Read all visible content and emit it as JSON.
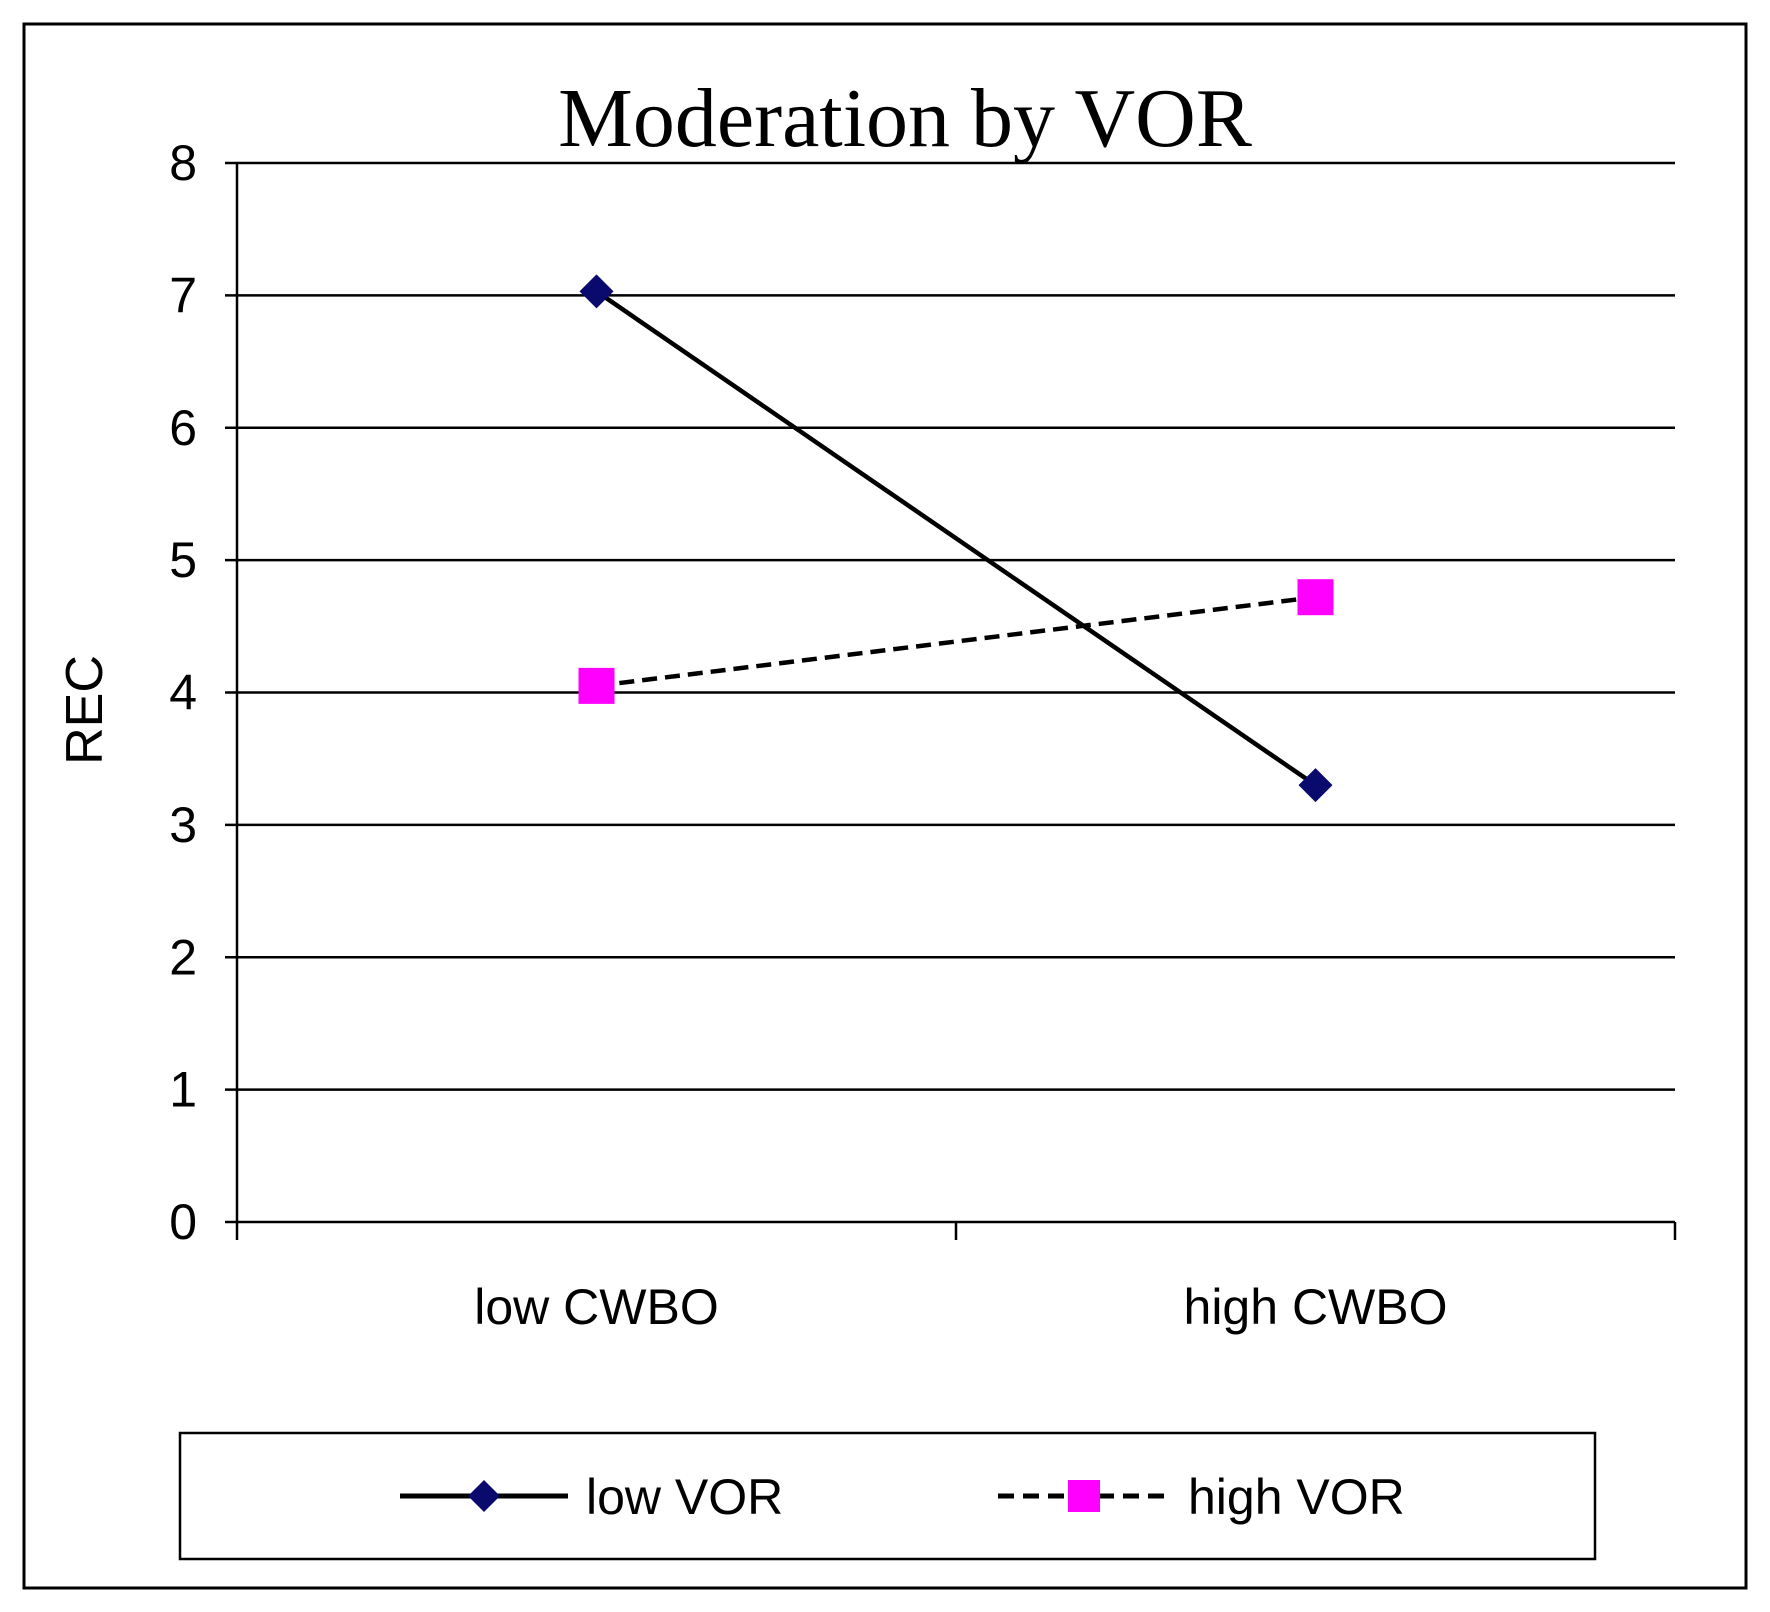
{
  "chart_data": {
    "type": "line",
    "title": "Moderation by VOR",
    "xlabel": "",
    "ylabel": "REC",
    "categories": [
      "low CWBO",
      "high CWBO"
    ],
    "ylim": [
      0,
      8
    ],
    "yticks": [
      0,
      1,
      2,
      3,
      4,
      5,
      6,
      7,
      8
    ],
    "grid": true,
    "legend_position": "bottom",
    "series": [
      {
        "name": "low VOR",
        "values": [
          7.03,
          3.3
        ],
        "color": "#000000",
        "marker": "diamond",
        "marker_color": "#0a0a6e",
        "line_style": "solid"
      },
      {
        "name": "high VOR",
        "values": [
          4.05,
          4.72
        ],
        "color": "#000000",
        "marker": "square",
        "marker_color": "#ff00ff",
        "line_style": "dashed"
      }
    ]
  }
}
